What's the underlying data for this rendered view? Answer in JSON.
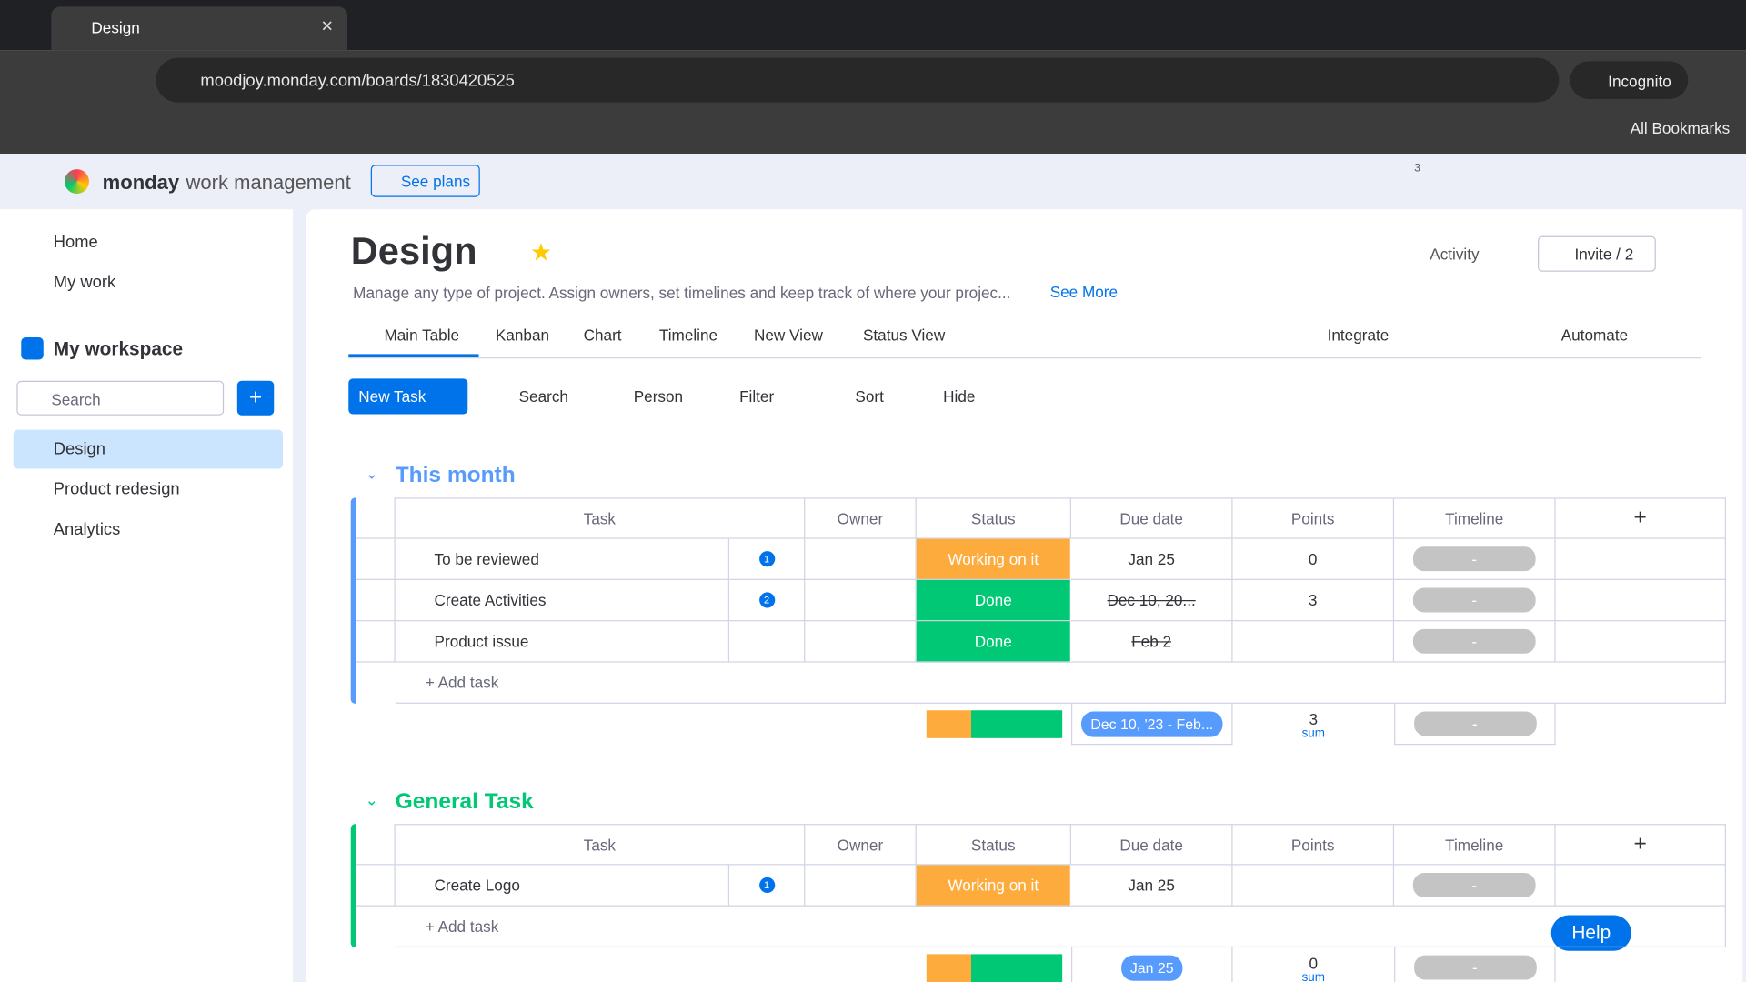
{
  "browser": {
    "tab_title": "Design",
    "url": "moodjoy.monday.com/boards/1830420525",
    "incognito": "Incognito",
    "bookmarks": "All Bookmarks"
  },
  "app": {
    "brand": "monday",
    "brand_sub": "work management",
    "see_plans": "See plans",
    "inbox_badge": "3"
  },
  "sidebar": {
    "nav": [
      "Home",
      "My work"
    ],
    "workspace": "My workspace",
    "search": "Search",
    "boards": [
      "Design",
      "Product redesign",
      "Analytics"
    ]
  },
  "board": {
    "title": "Design",
    "description": "Manage any type of project. Assign owners, set timelines and keep track of where your projec...",
    "see_more": "See More",
    "activity": "Activity",
    "invite": "Invite / 2",
    "views": [
      "Main Table",
      "Kanban",
      "Chart",
      "Timeline",
      "New View",
      "Status View"
    ],
    "integrate": "Integrate",
    "automate": "Automate",
    "toolbar": {
      "new_task": "New Task",
      "search": "Search",
      "person": "Person",
      "filter": "Filter",
      "sort": "Sort",
      "hide": "Hide"
    },
    "columns": [
      "Task",
      "Owner",
      "Status",
      "Due date",
      "Points",
      "Timeline"
    ],
    "groups": [
      {
        "name": "This month",
        "color": "#579bfc",
        "add_task": "+ Add task",
        "rows": [
          {
            "task": "To be reviewed",
            "comments": "1",
            "status": "Working on it",
            "status_color": "#fdab3d",
            "due": "Jan 25",
            "due_done": false,
            "points": "0",
            "timeline": "-"
          },
          {
            "task": "Create Activities",
            "comments": "2",
            "status": "Done",
            "status_color": "#00c875",
            "due": "Dec 10, 20...",
            "due_done": true,
            "points": "3",
            "timeline": "-"
          },
          {
            "task": "Product issue",
            "status": "Done",
            "status_color": "#00c875",
            "due": "Feb 2",
            "due_done": true,
            "timeline": "-"
          }
        ],
        "summary": {
          "date_range": "Dec 10, '23 - Feb...",
          "points": "3",
          "points_label": "sum",
          "timeline": "-"
        }
      },
      {
        "name": "General Task",
        "color": "#00c875",
        "add_task": "+ Add task",
        "rows": [
          {
            "task": "Create Logo",
            "comments": "1",
            "status": "Working on it",
            "status_color": "#fdab3d",
            "due": "Jan 25",
            "due_done": false,
            "timeline": "-"
          }
        ],
        "summary": {
          "date_range": "Jan 25",
          "points": "0",
          "points_label": "sum",
          "timeline": "-"
        }
      }
    ]
  },
  "help": "Help"
}
